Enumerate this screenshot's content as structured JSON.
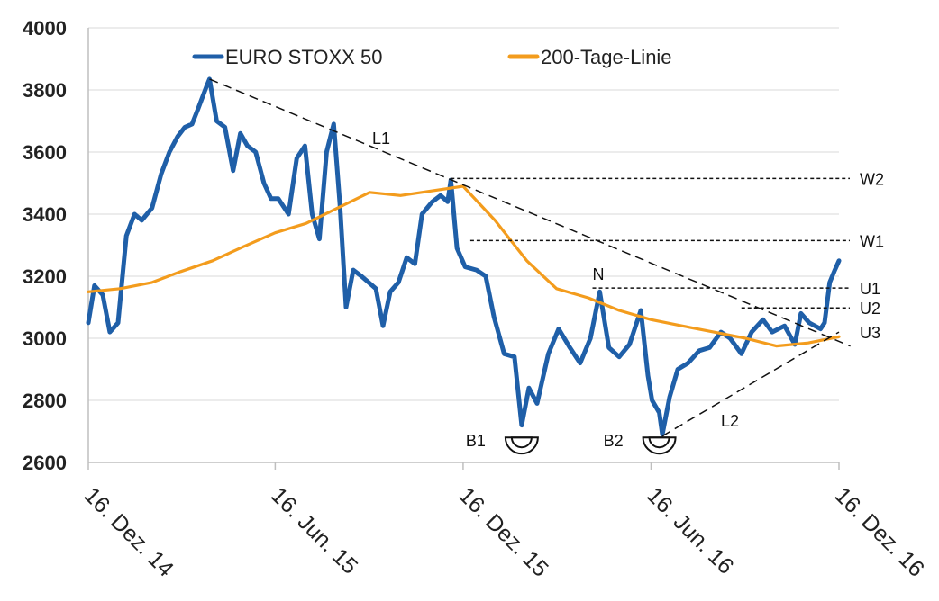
{
  "chart_data": {
    "type": "line",
    "title": "",
    "xlabel": "",
    "ylabel": "",
    "ylim": [
      2600,
      4000
    ],
    "yticks": [
      "4000",
      "3800",
      "3600",
      "3400",
      "3200",
      "3000",
      "2800",
      "2600"
    ],
    "xticks": [
      "16. Dez. 14",
      "16. Jun. 15",
      "16. Dez. 15",
      "16. Jun. 16",
      "16. Dez. 16"
    ],
    "grid": true,
    "legend_position": "top",
    "colors": {
      "euro_stoxx": "#1f5fa8",
      "sma200": "#f39c1d",
      "grid": "#d9d9d9"
    },
    "series": [
      {
        "name": "EURO STOXX 50",
        "color": "#1f5fa8",
        "x": [
          "2014-12-16",
          "2014-12-22",
          "2014-12-30",
          "2015-01-06",
          "2015-01-14",
          "2015-01-22",
          "2015-01-30",
          "2015-02-06",
          "2015-02-16",
          "2015-02-25",
          "2015-03-05",
          "2015-03-13",
          "2015-03-20",
          "2015-03-27",
          "2015-04-02",
          "2015-04-10",
          "2015-04-13",
          "2015-04-20",
          "2015-04-28",
          "2015-05-06",
          "2015-05-13",
          "2015-05-20",
          "2015-05-28",
          "2015-06-05",
          "2015-06-12",
          "2015-06-19",
          "2015-06-29",
          "2015-07-07",
          "2015-07-15",
          "2015-07-22",
          "2015-07-29",
          "2015-08-05",
          "2015-08-12",
          "2015-08-18",
          "2015-08-24",
          "2015-08-31",
          "2015-09-08",
          "2015-09-15",
          "2015-09-22",
          "2015-09-29",
          "2015-10-06",
          "2015-10-14",
          "2015-10-22",
          "2015-10-30",
          "2015-11-06",
          "2015-11-16",
          "2015-11-24",
          "2015-12-01",
          "2015-12-04",
          "2015-12-10",
          "2015-12-18",
          "2015-12-29",
          "2016-01-07",
          "2016-01-15",
          "2016-01-25",
          "2016-02-04",
          "2016-02-11",
          "2016-02-18",
          "2016-02-26",
          "2016-03-08",
          "2016-03-18",
          "2016-03-29",
          "2016-04-08",
          "2016-04-18",
          "2016-04-27",
          "2016-05-06",
          "2016-05-16",
          "2016-05-26",
          "2016-06-06",
          "2016-06-13",
          "2016-06-17",
          "2016-06-24",
          "2016-06-27",
          "2016-07-04",
          "2016-07-12",
          "2016-07-22",
          "2016-08-02",
          "2016-08-12",
          "2016-08-23",
          "2016-09-01",
          "2016-09-12",
          "2016-09-22",
          "2016-10-03",
          "2016-10-12",
          "2016-10-24",
          "2016-11-03",
          "2016-11-09",
          "2016-11-17",
          "2016-11-28",
          "2016-12-02",
          "2016-12-07",
          "2016-12-12",
          "2016-12-16"
        ],
        "y": [
          3050,
          3170,
          3140,
          3020,
          3050,
          3330,
          3400,
          3380,
          3420,
          3530,
          3600,
          3650,
          3680,
          3690,
          3740,
          3810,
          3835,
          3700,
          3680,
          3540,
          3660,
          3620,
          3600,
          3500,
          3450,
          3450,
          3400,
          3580,
          3620,
          3400,
          3320,
          3600,
          3690,
          3430,
          3100,
          3220,
          3200,
          3180,
          3160,
          3040,
          3150,
          3180,
          3260,
          3240,
          3400,
          3440,
          3460,
          3440,
          3510,
          3290,
          3230,
          3220,
          3200,
          3070,
          2950,
          2940,
          2720,
          2840,
          2790,
          2950,
          3030,
          2970,
          2920,
          3000,
          3150,
          2970,
          2940,
          2980,
          3090,
          2880,
          2800,
          2760,
          2690,
          2810,
          2900,
          2920,
          2960,
          2970,
          3020,
          3000,
          2950,
          3020,
          3060,
          3020,
          3040,
          2980,
          3080,
          3050,
          3030,
          3050,
          3180,
          3220,
          3250
        ]
      },
      {
        "name": "200-Tage-Linie",
        "color": "#f39c1d",
        "x": [
          "2014-12-16",
          "2015-01-16",
          "2015-02-16",
          "2015-03-16",
          "2015-04-16",
          "2015-05-16",
          "2015-06-16",
          "2015-07-16",
          "2015-08-16",
          "2015-09-16",
          "2015-10-16",
          "2015-11-16",
          "2015-12-16",
          "2016-01-16",
          "2016-02-16",
          "2016-03-16",
          "2016-04-16",
          "2016-05-16",
          "2016-06-16",
          "2016-07-16",
          "2016-08-16",
          "2016-09-16",
          "2016-10-16",
          "2016-11-16",
          "2016-12-16"
        ],
        "y": [
          3150,
          3160,
          3180,
          3215,
          3250,
          3295,
          3340,
          3370,
          3420,
          3470,
          3460,
          3475,
          3490,
          3380,
          3250,
          3160,
          3130,
          3090,
          3060,
          3040,
          3020,
          3000,
          2975,
          2985,
          3005
        ]
      }
    ],
    "annotations": {
      "lines": [
        {
          "label": "L1",
          "style": "dashed",
          "from": [
            "2015-04-13",
            3835
          ],
          "to": [
            "2016-12-16",
            2990
          ]
        },
        {
          "label": "L2",
          "style": "dashed",
          "from": [
            "2016-06-27",
            2685
          ],
          "to": [
            "2016-12-16",
            3020
          ]
        }
      ],
      "levels": [
        {
          "label": "W2",
          "y": 3515,
          "x_start": "2015-12-04"
        },
        {
          "label": "W1",
          "y": 3315,
          "x_start": "2015-12-23"
        },
        {
          "label": "U1",
          "y": 3162,
          "x_start": "2016-04-20"
        },
        {
          "label": "U2",
          "y": 3098,
          "x_start": "2016-09-12"
        },
        {
          "label": "U3",
          "y": 3020,
          "x_start": null
        }
      ],
      "points": [
        {
          "label": "B1",
          "x": "2016-02-11",
          "y": 2640
        },
        {
          "label": "B2",
          "x": "2016-06-24",
          "y": 2640
        },
        {
          "label": "N",
          "x": "2016-04-27",
          "y": 3165
        }
      ]
    }
  }
}
